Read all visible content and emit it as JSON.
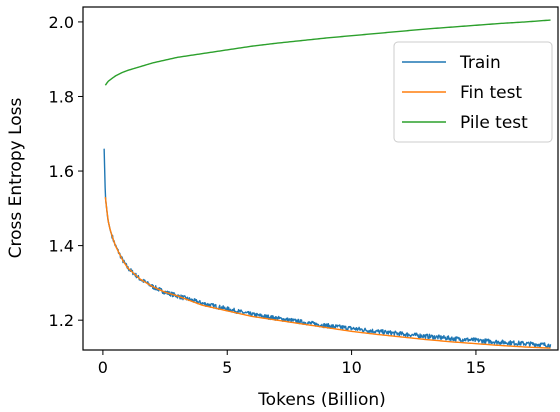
{
  "chart_data": {
    "type": "line",
    "xlabel": "Tokens (Billion)",
    "ylabel": "Cross Entropy Loss",
    "xlim": [
      -0.8,
      18.3
    ],
    "ylim": [
      1.12,
      2.04
    ],
    "xticks": [
      0,
      5,
      10,
      15
    ],
    "xtick_labels": [
      "0",
      "5",
      "10",
      "15"
    ],
    "yticks": [
      1.2,
      1.4,
      1.6,
      1.8,
      2.0
    ],
    "ytick_labels": [
      "1.2",
      "1.4",
      "1.6",
      "1.8",
      "2.0"
    ],
    "legend_position": "upper-right",
    "grid": false,
    "series": [
      {
        "name": "Train",
        "color": "#1f77b4",
        "noisy": true,
        "x": [
          0.05,
          0.1,
          0.2,
          0.3,
          0.5,
          0.8,
          1.0,
          1.5,
          2.0,
          2.5,
          3.0,
          4.0,
          5.0,
          6.0,
          7.0,
          8.0,
          9.0,
          10.0,
          11.0,
          12.0,
          13.0,
          14.0,
          15.0,
          16.0,
          17.0,
          17.5,
          18.0
        ],
        "y": [
          1.66,
          1.53,
          1.47,
          1.44,
          1.4,
          1.36,
          1.34,
          1.31,
          1.29,
          1.275,
          1.265,
          1.245,
          1.23,
          1.215,
          1.205,
          1.195,
          1.185,
          1.178,
          1.17,
          1.163,
          1.157,
          1.151,
          1.146,
          1.141,
          1.137,
          1.135,
          1.133
        ]
      },
      {
        "name": "Fin test",
        "color": "#ff7f0e",
        "noisy": false,
        "x": [
          0.1,
          0.2,
          0.3,
          0.5,
          0.8,
          1.0,
          1.5,
          2.0,
          2.5,
          3.0,
          4.0,
          5.0,
          6.0,
          7.0,
          8.0,
          9.0,
          10.0,
          11.0,
          12.0,
          13.0,
          14.0,
          15.0,
          16.0,
          17.0,
          18.0
        ],
        "y": [
          1.53,
          1.47,
          1.44,
          1.4,
          1.36,
          1.34,
          1.31,
          1.29,
          1.275,
          1.265,
          1.24,
          1.225,
          1.21,
          1.2,
          1.19,
          1.18,
          1.17,
          1.162,
          1.155,
          1.148,
          1.142,
          1.137,
          1.132,
          1.128,
          1.125
        ]
      },
      {
        "name": "Pile test",
        "color": "#2ca02c",
        "noisy": false,
        "x": [
          0.1,
          0.2,
          0.3,
          0.5,
          0.8,
          1.0,
          1.5,
          2.0,
          3.0,
          4.0,
          5.0,
          6.0,
          7.0,
          8.0,
          9.0,
          10.0,
          11.0,
          12.0,
          13.0,
          14.0,
          15.0,
          16.0,
          17.0,
          18.0
        ],
        "y": [
          1.83,
          1.84,
          1.845,
          1.855,
          1.865,
          1.87,
          1.88,
          1.89,
          1.905,
          1.915,
          1.925,
          1.935,
          1.943,
          1.95,
          1.957,
          1.963,
          1.969,
          1.975,
          1.981,
          1.986,
          1.991,
          1.996,
          2.0,
          2.005
        ]
      }
    ]
  }
}
